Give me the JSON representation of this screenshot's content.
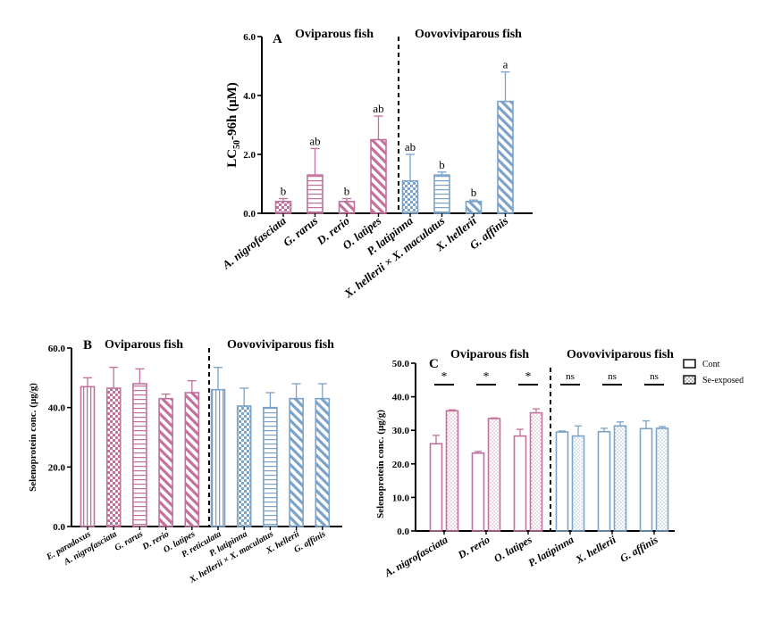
{
  "colors": {
    "pink": "#c2709c",
    "blue": "#7ba2c8",
    "axis": "#000000"
  },
  "chart_data": [
    {
      "panel": "A",
      "type": "bar",
      "title_left": "Oviparous fish",
      "title_right": "Oovoviviparous fish",
      "ylabel": "LC",
      "ylabel_sub": "50",
      "ylabel_rest": "-96h (μM)",
      "ylim": [
        0,
        6
      ],
      "yticks": [
        {
          "value": 0,
          "label": "0.0"
        },
        {
          "value": 2,
          "label": "2.0"
        },
        {
          "value": 4,
          "label": "4.0"
        },
        {
          "value": 6,
          "label": "6.0"
        }
      ],
      "categories": [
        "A. nigrofasciata",
        "G. rarus",
        "D. rerio",
        "O. latipes",
        "P. latipinna",
        "X. hellerii × X. maculatus",
        "X. hellerii",
        "G. affinis"
      ],
      "values": [
        0.4,
        1.3,
        0.4,
        2.5,
        1.1,
        1.3,
        0.4,
        3.8
      ],
      "errors": [
        0.1,
        0.9,
        0.1,
        0.8,
        0.9,
        0.1,
        0.05,
        1.0
      ],
      "letters": [
        "b",
        "ab",
        "b",
        "ab",
        "ab",
        "b",
        "b",
        "a"
      ],
      "groups": [
        "pink",
        "pink",
        "pink",
        "pink",
        "blue",
        "blue",
        "blue",
        "blue"
      ],
      "patterns": [
        "check",
        "hlines",
        "diag",
        "diag",
        "check",
        "hlines",
        "diag",
        "diag"
      ]
    },
    {
      "panel": "B",
      "type": "bar",
      "title_left": "Oviparous fish",
      "title_right": "Oovoviviparous fish",
      "ylabel": "Selenoprotein conc. (μg/g)",
      "ylim": [
        0,
        60
      ],
      "yticks": [
        {
          "value": 0,
          "label": "0.0"
        },
        {
          "value": 20,
          "label": "20.0"
        },
        {
          "value": 40,
          "label": "40.0"
        },
        {
          "value": 60,
          "label": "60.0"
        }
      ],
      "categories": [
        "E. paradoxus",
        "A. nigrofasciata",
        "G. rarus",
        "D. rerio",
        "O. latipes",
        "P. reticulata",
        "P. latipinna",
        "X. hellerii × X. maculatus",
        "X. hellerii",
        "G. affinis"
      ],
      "values": [
        47,
        46.5,
        48,
        43,
        45,
        46,
        40.5,
        40,
        43,
        43
      ],
      "errors": [
        3,
        7,
        5,
        1.5,
        4,
        7.5,
        6,
        5,
        5,
        5
      ],
      "groups": [
        "pink",
        "pink",
        "pink",
        "pink",
        "pink",
        "blue",
        "blue",
        "blue",
        "blue",
        "blue"
      ],
      "patterns": [
        "vlines",
        "check",
        "hlines",
        "diag",
        "diag",
        "vlines",
        "check",
        "hlines",
        "diag",
        "diag"
      ]
    },
    {
      "panel": "C",
      "type": "bar",
      "title_left": "Oviparous fish",
      "title_right": "Oovoviviparous fish",
      "ylabel": "Selenoprotein conc. (μg/g)",
      "ylim": [
        0,
        50
      ],
      "yticks": [
        {
          "value": 0,
          "label": "0.0"
        },
        {
          "value": 10,
          "label": "10.0"
        },
        {
          "value": 20,
          "label": "20.0"
        },
        {
          "value": 30,
          "label": "30.0"
        },
        {
          "value": 40,
          "label": "40.0"
        },
        {
          "value": 50,
          "label": "50.0"
        }
      ],
      "categories": [
        "A. nigrofasciata",
        "D. rerio",
        "O. latipes",
        "P. latipinna",
        "X. hellerii",
        "G. affinis"
      ],
      "groups": [
        "pink",
        "pink",
        "pink",
        "blue",
        "blue",
        "blue"
      ],
      "series": [
        {
          "name": "Cont",
          "values": [
            26,
            23.2,
            28.3,
            29.5,
            29.6,
            30.5
          ],
          "errors": [
            2.5,
            0.5,
            2,
            0.3,
            1,
            2.3
          ]
        },
        {
          "name": "Se-exposed",
          "values": [
            35.8,
            33.5,
            35.2,
            28.3,
            31.3,
            30.6
          ],
          "errors": [
            0.3,
            0.2,
            1.2,
            3,
            1.2,
            0.5
          ]
        }
      ],
      "significance": [
        "*",
        "*",
        "*",
        "ns",
        "ns",
        "ns"
      ]
    }
  ]
}
